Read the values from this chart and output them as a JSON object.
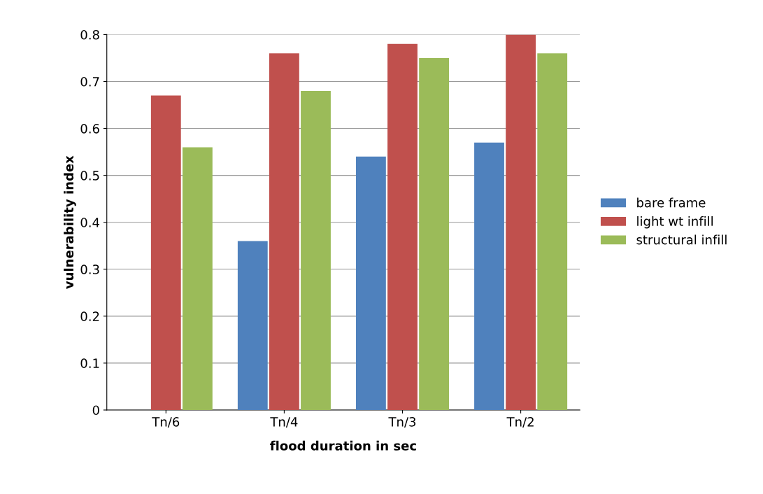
{
  "chart_data": {
    "type": "bar",
    "xlabel": "flood duration in sec",
    "ylabel": "vulnerability index",
    "categories": [
      "Tn/6",
      "Tn/4",
      "Tn/3",
      "Tn/2"
    ],
    "series": [
      {
        "name": "bare frame",
        "color": "#4f81bd",
        "values": [
          0,
          0.36,
          0.54,
          0.57
        ]
      },
      {
        "name": "light wt infill",
        "color": "#c0504d",
        "values": [
          0.67,
          0.76,
          0.78,
          0.8
        ]
      },
      {
        "name": "structural infill",
        "color": "#9bbb59",
        "values": [
          0.56,
          0.68,
          0.75,
          0.76
        ]
      }
    ],
    "ylim": [
      0,
      0.8
    ],
    "yticks": [
      0,
      0.1,
      0.2,
      0.3,
      0.4,
      0.5,
      0.6,
      0.7,
      0.8
    ],
    "grid": "y",
    "legend": "right"
  }
}
